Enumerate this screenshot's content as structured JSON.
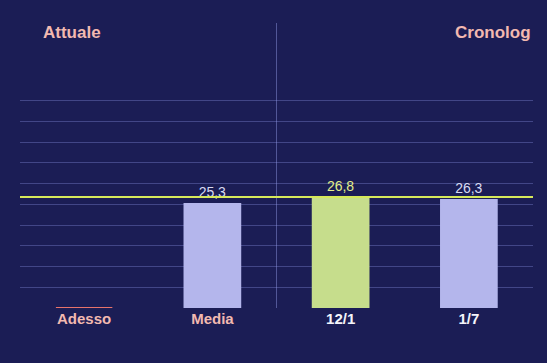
{
  "chart_data": {
    "type": "bar",
    "section_titles": [
      "Attuale",
      "Cronolog"
    ],
    "categories": [
      "Adesso",
      "Media",
      "12/1",
      "1/7"
    ],
    "values": [
      null,
      25.3,
      26.8,
      26.3
    ],
    "value_labels": [
      null,
      "25,3",
      "26,8",
      "26,3"
    ],
    "colors": [
      "#e8736b",
      "#b4b6ec",
      "#c6dd8c",
      "#b4b6ec"
    ],
    "data_labels": true,
    "reference_value": 26.8,
    "ylim": [
      0,
      55
    ],
    "yticks": [
      0,
      5,
      10,
      15,
      20,
      25,
      30,
      35,
      40,
      45,
      50,
      55
    ],
    "grid": true,
    "tick_labels": "x"
  }
}
